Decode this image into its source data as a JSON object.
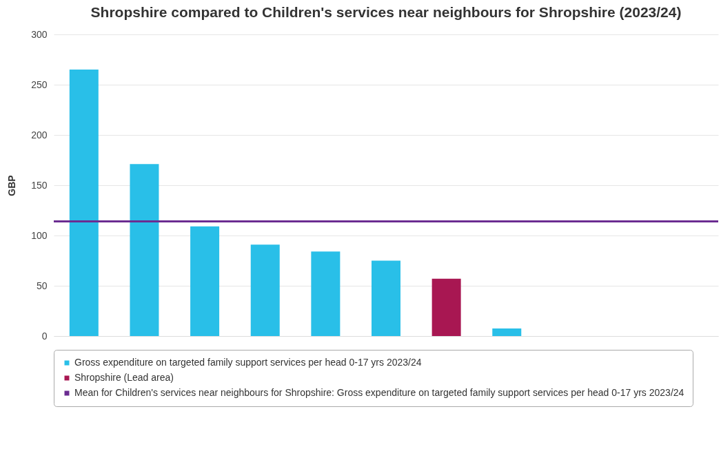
{
  "chart_data": {
    "type": "bar",
    "title": "Shropshire compared to Children's services near neighbours for Shropshire (2023/24)",
    "ylabel": "GBP",
    "categories": [
      null,
      null,
      null,
      null,
      null,
      null,
      null,
      null,
      null,
      null,
      null
    ],
    "series": [
      {
        "name": "Gross expenditure on targeted family support services per head 0-17 yrs 2023/24",
        "color": "#29bfe8",
        "values": [
          265,
          171,
          109,
          91,
          84,
          75,
          null,
          7.5,
          null,
          null,
          null
        ]
      },
      {
        "name": "Shropshire (Lead area)",
        "color": "#a81752",
        "values": [
          null,
          null,
          null,
          null,
          null,
          null,
          57,
          null,
          null,
          null,
          null
        ]
      }
    ],
    "ref_lines": [
      {
        "axis": "y",
        "value": 114,
        "label": "Mean for Children's services near neighbours for Shropshire: Gross expenditure on targeted family support services per head 0-17 yrs 2023/24",
        "color": "#6b2c91"
      }
    ],
    "ylim": [
      0,
      300
    ],
    "yticks": [
      0,
      50,
      100,
      150,
      200,
      250,
      300
    ],
    "grid": "y",
    "legend": "bottom"
  }
}
